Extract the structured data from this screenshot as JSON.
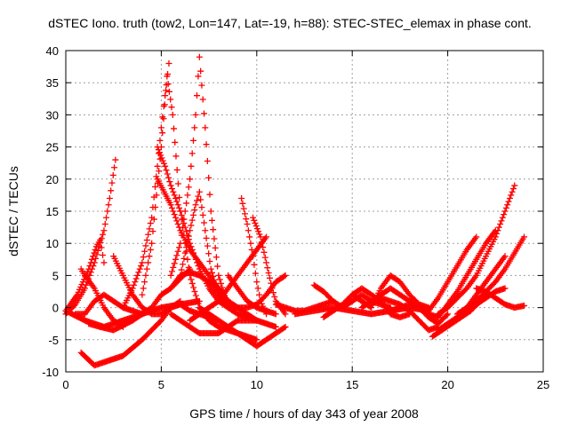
{
  "chart_data": {
    "type": "scatter",
    "title": "dSTEC Iono. truth (tow2, Lon=147, Lat=-19, h=88): STEC-STEC_elemax in phase cont.",
    "xlabel": "GPS time / hours of day 343 of year 2008",
    "ylabel": "dSTEC  / TECUs",
    "xlim": [
      0,
      25
    ],
    "ylim": [
      -10,
      40
    ],
    "xticks": [
      0,
      5,
      10,
      15,
      20,
      25
    ],
    "yticks": [
      -10,
      -5,
      0,
      5,
      10,
      15,
      20,
      25,
      30,
      35,
      40
    ],
    "grid": true,
    "marker": "+",
    "color": "#ff0000",
    "series": [
      {
        "x": [
          0.0,
          0.6,
          1.2,
          1.6,
          1.8,
          2.0
        ],
        "y": [
          -0.5,
          2.0,
          6.0,
          9.5,
          10.5,
          7.0
        ]
      },
      {
        "x": [
          0.0,
          0.5,
          1.0,
          1.5,
          2.0,
          2.3,
          2.6
        ],
        "y": [
          -1.0,
          0.5,
          3.0,
          7.0,
          12.0,
          17.0,
          23.0
        ]
      },
      {
        "x": [
          0.5,
          1.0,
          1.5,
          2.0,
          2.5,
          3.0,
          3.5,
          4.0
        ],
        "y": [
          -1.0,
          -1.0,
          1.0,
          2.0,
          1.0,
          0.0,
          -0.5,
          -1.0
        ]
      },
      {
        "x": [
          0.8,
          1.0,
          1.5,
          2.0,
          2.5,
          3.0
        ],
        "y": [
          6.0,
          5.0,
          3.0,
          0.0,
          -2.0,
          -3.0
        ]
      },
      {
        "x": [
          0.0,
          1.0,
          2.0,
          3.0,
          4.0,
          5.0,
          6.0,
          7.0
        ],
        "y": [
          -0.5,
          -2.0,
          -3.0,
          -2.0,
          -1.0,
          0.0,
          0.5,
          1.0
        ]
      },
      {
        "x": [
          2.5,
          3.0,
          3.5,
          4.0,
          4.5,
          5.0,
          5.5,
          6.0,
          6.5,
          7.0,
          7.5,
          8.0
        ],
        "y": [
          8.0,
          5.0,
          2.0,
          0.0,
          -1.0,
          -1.0,
          0.0,
          0.5,
          -0.5,
          -1.0,
          -1.5,
          -2.0
        ]
      },
      {
        "x": [
          0.8,
          1.5,
          2.0,
          3.0,
          4.0,
          5.0,
          5.5,
          6.0
        ],
        "y": [
          -7.0,
          -9.0,
          -8.5,
          -7.5,
          -5.0,
          -2.0,
          0.0,
          1.0
        ]
      },
      {
        "x": [
          1.2,
          1.8,
          2.5,
          3.5,
          4.5,
          5.0,
          5.5,
          6.0,
          6.5
        ],
        "y": [
          -2.5,
          -3.0,
          -3.5,
          -2.0,
          0.0,
          2.0,
          3.0,
          4.5,
          6.0
        ]
      },
      {
        "x": [
          3.0,
          3.5,
          4.0,
          4.5,
          4.8,
          5.0,
          5.2,
          5.4
        ],
        "y": [
          0.0,
          3.0,
          7.0,
          14.0,
          22.0,
          28.0,
          33.0,
          38.0
        ]
      },
      {
        "x": [
          4.0,
          4.5,
          5.0,
          5.3,
          5.6,
          6.0,
          6.5,
          7.0,
          7.5,
          8.0,
          9.0,
          10.0
        ],
        "y": [
          2.0,
          10.0,
          25.0,
          36.0,
          30.0,
          15.0,
          5.0,
          0.0,
          -2.0,
          -3.0,
          -4.0,
          -5.0
        ]
      },
      {
        "x": [
          4.8,
          5.2,
          5.5,
          6.0,
          6.5,
          7.0,
          7.5,
          8.0,
          8.5,
          9.0,
          10.0,
          11.0
        ],
        "y": [
          25.0,
          22.0,
          19.0,
          15.0,
          10.0,
          6.0,
          3.0,
          1.0,
          0.0,
          -1.0,
          -2.0,
          -3.0
        ]
      },
      {
        "x": [
          4.8,
          5.5,
          6.0,
          6.5,
          7.0,
          7.5,
          8.0,
          8.5,
          9.0,
          9.5,
          10.0
        ],
        "y": [
          20.0,
          16.0,
          12.0,
          9.0,
          7.0,
          5.0,
          3.0,
          1.0,
          0.0,
          -1.0,
          -2.0
        ]
      },
      {
        "x": [
          5.5,
          6.0,
          6.5,
          7.0,
          7.5,
          8.0,
          8.5,
          9.0
        ],
        "y": [
          3.0,
          5.0,
          5.5,
          5.0,
          4.0,
          3.0,
          1.0,
          0.0
        ]
      },
      {
        "x": [
          5.5,
          6.0,
          6.5,
          6.8,
          7.0,
          7.3,
          7.6,
          8.0,
          8.5
        ],
        "y": [
          5.0,
          10.0,
          20.0,
          30.0,
          39.0,
          28.0,
          15.0,
          5.0,
          0.0
        ]
      },
      {
        "x": [
          6.0,
          6.5,
          6.8,
          7.0,
          7.3,
          7.6,
          8.0,
          8.5
        ],
        "y": [
          5.0,
          12.0,
          16.0,
          18.0,
          12.0,
          6.0,
          2.0,
          0.0
        ]
      },
      {
        "x": [
          5.5,
          6.0,
          6.5,
          7.0,
          7.5,
          8.0,
          8.5,
          9.0,
          9.5,
          10.0
        ],
        "y": [
          -1.0,
          -2.0,
          -3.0,
          -4.0,
          -4.0,
          -4.0,
          -3.0,
          -2.0,
          -2.0,
          -2.0
        ]
      },
      {
        "x": [
          7.0,
          7.5,
          8.0,
          8.5,
          9.0,
          9.5,
          10.0,
          10.5,
          11.0,
          11.5
        ],
        "y": [
          0.0,
          -1.0,
          -2.0,
          -3.0,
          -4.0,
          -5.0,
          -6.0,
          -5.0,
          -4.0,
          -3.0
        ]
      },
      {
        "x": [
          6.5,
          7.0,
          7.5,
          8.0,
          8.5,
          9.0,
          9.5,
          10.0,
          10.5
        ],
        "y": [
          -2.0,
          -1.0,
          0.0,
          1.0,
          3.0,
          5.0,
          7.0,
          9.0,
          11.0
        ]
      },
      {
        "x": [
          8.5,
          9.0,
          9.5,
          10.0,
          10.5,
          11.0
        ],
        "y": [
          5.0,
          3.0,
          1.0,
          0.0,
          -0.5,
          -1.0
        ]
      },
      {
        "x": [
          9.2,
          9.5,
          9.8,
          10.0,
          10.2,
          10.5
        ],
        "y": [
          17.0,
          13.0,
          8.0,
          4.0,
          1.0,
          -1.0
        ]
      },
      {
        "x": [
          9.8,
          10.2,
          10.5,
          10.8,
          11.0,
          11.5
        ],
        "y": [
          14.0,
          11.0,
          7.0,
          3.0,
          1.0,
          -1.0
        ]
      },
      {
        "x": [
          7.5,
          8.0,
          8.5,
          9.0,
          9.5,
          10.0,
          10.5,
          11.0,
          11.5
        ],
        "y": [
          4.0,
          2.0,
          0.5,
          0.0,
          0.0,
          0.5,
          2.0,
          4.0,
          5.0
        ]
      },
      {
        "x": [
          11.0,
          11.5,
          12.0,
          12.5,
          13.0,
          13.5,
          14.0
        ],
        "y": [
          0.5,
          0.0,
          -0.5,
          -0.5,
          0.0,
          0.5,
          1.0
        ]
      },
      {
        "x": [
          12.0,
          13.0,
          14.0,
          15.0,
          16.0,
          17.0,
          18.0,
          19.0
        ],
        "y": [
          -1.0,
          -0.5,
          0.0,
          -0.5,
          -1.0,
          -0.5,
          0.0,
          -0.5
        ]
      },
      {
        "x": [
          13.0,
          13.5,
          14.0,
          14.5,
          15.0,
          15.5,
          16.0,
          16.5,
          17.0
        ],
        "y": [
          3.5,
          2.5,
          1.0,
          0.0,
          1.0,
          2.0,
          1.0,
          0.5,
          0.0
        ]
      },
      {
        "x": [
          13.5,
          14.0,
          14.5,
          15.0,
          15.5,
          16.0,
          16.5,
          17.0,
          17.5,
          18.0
        ],
        "y": [
          -1.5,
          -0.5,
          0.5,
          2.0,
          3.0,
          2.0,
          1.0,
          -1.0,
          -1.5,
          -1.0
        ]
      },
      {
        "x": [
          15.0,
          15.5,
          16.0,
          16.5,
          17.0,
          17.5,
          18.0,
          18.5,
          19.0
        ],
        "y": [
          2.0,
          1.0,
          0.0,
          3.0,
          5.0,
          4.0,
          2.0,
          0.5,
          0.0
        ]
      },
      {
        "x": [
          15.5,
          16.0,
          16.5,
          17.0,
          17.5,
          18.0,
          18.5,
          19.0,
          19.5
        ],
        "y": [
          0.0,
          1.0,
          2.0,
          3.0,
          2.0,
          1.0,
          0.0,
          -1.0,
          -1.5
        ]
      },
      {
        "x": [
          16.0,
          16.5,
          17.0,
          17.5,
          18.0,
          18.5,
          19.0,
          19.5
        ],
        "y": [
          0.5,
          1.5,
          1.0,
          0.5,
          -0.5,
          -2.0,
          -3.5,
          -3.0
        ]
      },
      {
        "x": [
          17.0,
          17.5,
          18.0,
          18.5,
          19.0,
          19.5,
          20.0
        ],
        "y": [
          -0.5,
          0.0,
          0.5,
          0.0,
          -1.5,
          -2.5,
          -1.0
        ]
      },
      {
        "x": [
          19.2,
          19.7,
          20.2,
          20.7,
          21.2,
          21.7,
          22.0
        ],
        "y": [
          -4.5,
          -3.5,
          -2.5,
          -1.5,
          -0.5,
          1.0,
          2.0
        ]
      },
      {
        "x": [
          19.5,
          20.0,
          20.5,
          21.0,
          21.5,
          22.0,
          22.5,
          23.0
        ],
        "y": [
          -3.5,
          -2.5,
          -1.5,
          -0.5,
          0.5,
          1.5,
          2.5,
          3.0
        ]
      },
      {
        "x": [
          19.5,
          20.0,
          20.5,
          21.0,
          21.5,
          22.0,
          22.5,
          23.0,
          23.5
        ],
        "y": [
          -1.0,
          0.0,
          1.5,
          3.0,
          5.0,
          8.0,
          11.0,
          15.0,
          19.0
        ]
      },
      {
        "x": [
          19.5,
          20.0,
          20.5,
          21.0,
          21.5,
          22.0,
          22.5
        ],
        "y": [
          -1.5,
          0.5,
          2.5,
          5.0,
          7.5,
          10.0,
          12.0
        ]
      },
      {
        "x": [
          19.0,
          19.5,
          20.0,
          20.5,
          21.0,
          21.5
        ],
        "y": [
          -0.5,
          1.5,
          4.0,
          6.5,
          9.0,
          11.0
        ]
      },
      {
        "x": [
          20.5,
          21.0,
          21.5,
          22.0,
          22.5,
          23.0,
          23.5,
          24.0
        ],
        "y": [
          -1.0,
          0.0,
          1.0,
          2.5,
          4.0,
          6.0,
          8.5,
          11.0
        ]
      },
      {
        "x": [
          21.5,
          22.0,
          22.5,
          23.0,
          23.5,
          24.0
        ],
        "y": [
          3.0,
          2.5,
          1.5,
          0.5,
          0.0,
          0.3
        ]
      },
      {
        "x": [
          21.0,
          21.5,
          22.0,
          22.5,
          23.0
        ],
        "y": [
          0.0,
          2.0,
          4.0,
          6.0,
          8.0
        ]
      }
    ]
  }
}
